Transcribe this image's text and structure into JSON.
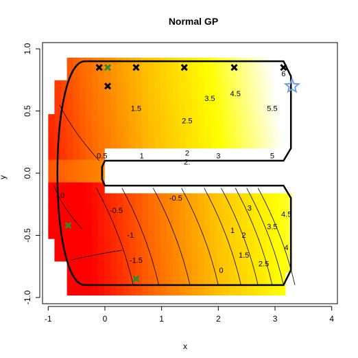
{
  "chart_data": {
    "type": "heatmap",
    "title": "Normal GP",
    "xlabel": "x",
    "ylabel": "y",
    "xlim": [
      -1.1,
      4.1
    ],
    "ylim": [
      -1.05,
      1.05
    ],
    "x_ticks": [
      -1,
      0,
      1,
      2,
      3,
      4
    ],
    "y_ticks": [
      -1.0,
      -0.5,
      0.0,
      0.5,
      1.0
    ],
    "y_tick_labels": [
      "-1.0",
      "-0.5",
      "0.0",
      "0.5",
      "1.0"
    ],
    "colormap": [
      "#ff0000",
      "#ff6a00",
      "#ffc000",
      "#ffff00",
      "#ffffff"
    ],
    "surface": {
      "description_values": "value increases left to right; upper arm 0 to 6, lower arm -1.5 to 4.5",
      "value_range": [
        -2,
        6.5
      ]
    },
    "contour_levels": [
      {
        "label": "0.5",
        "x": -0.05,
        "y": 0.12
      },
      {
        "label": "1",
        "x": 0.65,
        "y": 0.12
      },
      {
        "label": "1.5",
        "x": 0.55,
        "y": 0.5
      },
      {
        "label": "2",
        "x": 1.45,
        "y": 0.14
      },
      {
        "label": "2.5",
        "x": 1.45,
        "y": 0.4
      },
      {
        "label": "2.",
        "x": 1.45,
        "y": 0.07
      },
      {
        "label": "3",
        "x": 2.0,
        "y": 0.12
      },
      {
        "label": "3.5",
        "x": 1.85,
        "y": 0.58
      },
      {
        "label": "4.5",
        "x": 2.3,
        "y": 0.62
      },
      {
        "label": "5",
        "x": 2.95,
        "y": 0.12
      },
      {
        "label": "5.5",
        "x": 2.95,
        "y": 0.5
      },
      {
        "label": "6",
        "x": 3.15,
        "y": 0.78
      },
      {
        "label": "0",
        "x": -0.75,
        "y": -0.2
      },
      {
        "label": "-0.5",
        "x": 0.2,
        "y": -0.32
      },
      {
        "label": "-0.5",
        "x": 1.25,
        "y": -0.22
      },
      {
        "label": "-1",
        "x": 0.45,
        "y": -0.52
      },
      {
        "label": "-1.5",
        "x": 0.55,
        "y": -0.72
      },
      {
        "label": "0",
        "x": 2.05,
        "y": -0.8
      },
      {
        "label": "1",
        "x": 2.25,
        "y": -0.48
      },
      {
        "label": "1.5",
        "x": 2.45,
        "y": -0.68
      },
      {
        "label": "2",
        "x": 2.45,
        "y": -0.52
      },
      {
        "label": "2.5",
        "x": 2.8,
        "y": -0.75
      },
      {
        "label": "3",
        "x": 2.55,
        "y": -0.3
      },
      {
        "label": "3.5",
        "x": 2.95,
        "y": -0.45
      },
      {
        "label": "4",
        "x": 3.2,
        "y": -0.62
      },
      {
        "label": "4.5",
        "x": 3.2,
        "y": -0.35
      }
    ],
    "series": [
      {
        "marker": "x",
        "color": "#000000",
        "points": [
          [
            -0.1,
            0.85
          ],
          [
            0.05,
            0.7
          ],
          [
            0.55,
            0.85
          ],
          [
            1.4,
            0.85
          ],
          [
            2.28,
            0.85
          ],
          [
            3.15,
            0.85
          ]
        ]
      },
      {
        "marker": "x",
        "color": "#2e8b2e",
        "points": [
          [
            0.05,
            0.85
          ],
          [
            -0.65,
            -0.42
          ],
          [
            0.55,
            -0.85
          ]
        ]
      },
      {
        "marker": "star",
        "color": "#6a9fe0",
        "points": [
          [
            3.3,
            0.7
          ]
        ]
      }
    ],
    "grid": false,
    "legend": "none"
  }
}
